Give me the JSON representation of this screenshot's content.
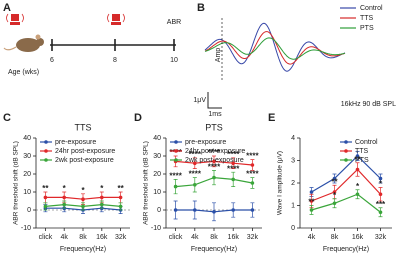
{
  "timeline": {
    "panel": "A",
    "ticks": [
      6,
      8,
      10
    ],
    "test": "ABR",
    "age_label": "Age (wks)"
  },
  "waveform": {
    "panel": "B",
    "legend": [
      {
        "name": "Control",
        "color": "#3848a8"
      },
      {
        "name": "TTS",
        "color": "#d62a2a"
      },
      {
        "name": "PTS",
        "color": "#2e9e3a"
      }
    ],
    "amp_label": "Amp",
    "amp_scale": "1μV",
    "time_scale": "1ms",
    "stimulus": "16kHz  90 dB SPL"
  },
  "chart_data": [
    {
      "type": "line",
      "panel": "C",
      "title": "TTS",
      "x_label": "Frequency(Hz)",
      "y_label": "ABR threshold shift (dB SPL)",
      "categories": [
        "click",
        "4k",
        "8k",
        "16k",
        "32k"
      ],
      "ylim": [
        -10,
        40
      ],
      "yticks": [
        -10,
        0,
        10,
        20,
        30,
        40
      ],
      "series": [
        {
          "name": "pre-exposure",
          "color": "#2a4fa8",
          "values": [
            1,
            1,
            0,
            1,
            0
          ],
          "errors": [
            2,
            2,
            2,
            2,
            2
          ]
        },
        {
          "name": "24hr post-exposure",
          "color": "#e0282a",
          "values": [
            7,
            7,
            6,
            7,
            7
          ],
          "errors": [
            3,
            3,
            3,
            3,
            3
          ],
          "stars": [
            "**",
            "*",
            "*",
            "*",
            "**"
          ]
        },
        {
          "name": "2wk post-exposure",
          "color": "#3aa53a",
          "values": [
            2,
            3,
            2,
            3,
            2
          ],
          "errors": [
            2,
            2,
            2,
            2,
            2
          ]
        }
      ]
    },
    {
      "type": "line",
      "panel": "D",
      "title": "PTS",
      "x_label": "Frequency(Hz)",
      "y_label": "ABR threshold shift (dB SPL)",
      "categories": [
        "click",
        "4k",
        "8k",
        "16k",
        "32k"
      ],
      "ylim": [
        -10,
        40
      ],
      "yticks": [
        -10,
        0,
        10,
        20,
        30,
        40
      ],
      "series": [
        {
          "name": "pre-exposure",
          "color": "#2a4fa8",
          "values": [
            0,
            0,
            -1,
            0,
            0
          ],
          "errors": [
            5,
            5,
            5,
            4,
            4
          ]
        },
        {
          "name": "24hr post-exposure",
          "color": "#e0282a",
          "values": [
            27,
            26,
            27,
            26,
            25
          ],
          "errors": [
            3,
            3,
            3,
            3,
            3
          ],
          "stars": [
            "****",
            "****",
            "****",
            "****",
            "****"
          ]
        },
        {
          "name": "2wk post-exposure",
          "color": "#3aa53a",
          "values": [
            13,
            14,
            18,
            17,
            15
          ],
          "errors": [
            4,
            4,
            4,
            4,
            3
          ],
          "stars": [
            "****",
            "****",
            "****",
            "****",
            "****"
          ]
        }
      ]
    },
    {
      "type": "line",
      "panel": "E",
      "x_label": "Frequency(Hz)",
      "y_label": "Wave I amplitude (μV)",
      "categories": [
        "4k",
        "8k",
        "16k",
        "32k"
      ],
      "ylim": [
        0,
        4
      ],
      "yticks": [
        0,
        1,
        2,
        3,
        4
      ],
      "series": [
        {
          "name": "Control",
          "color": "#2a4fa8",
          "values": [
            1.6,
            2.2,
            3.2,
            2.2
          ],
          "errors": [
            0.2,
            0.2,
            0.2,
            0.2
          ]
        },
        {
          "name": "TTS",
          "color": "#e0282a",
          "values": [
            1.2,
            1.6,
            2.6,
            1.5
          ],
          "errors": [
            0.3,
            0.3,
            0.3,
            0.3
          ],
          "stars": [
            null,
            "**",
            "**",
            "*"
          ]
        },
        {
          "name": "PTS",
          "color": "#3aa53a",
          "values": [
            0.8,
            1.1,
            1.5,
            0.7
          ],
          "errors": [
            0.2,
            0.2,
            0.2,
            0.2
          ],
          "stars": [
            "**",
            "*",
            "*",
            "***"
          ]
        }
      ]
    }
  ]
}
